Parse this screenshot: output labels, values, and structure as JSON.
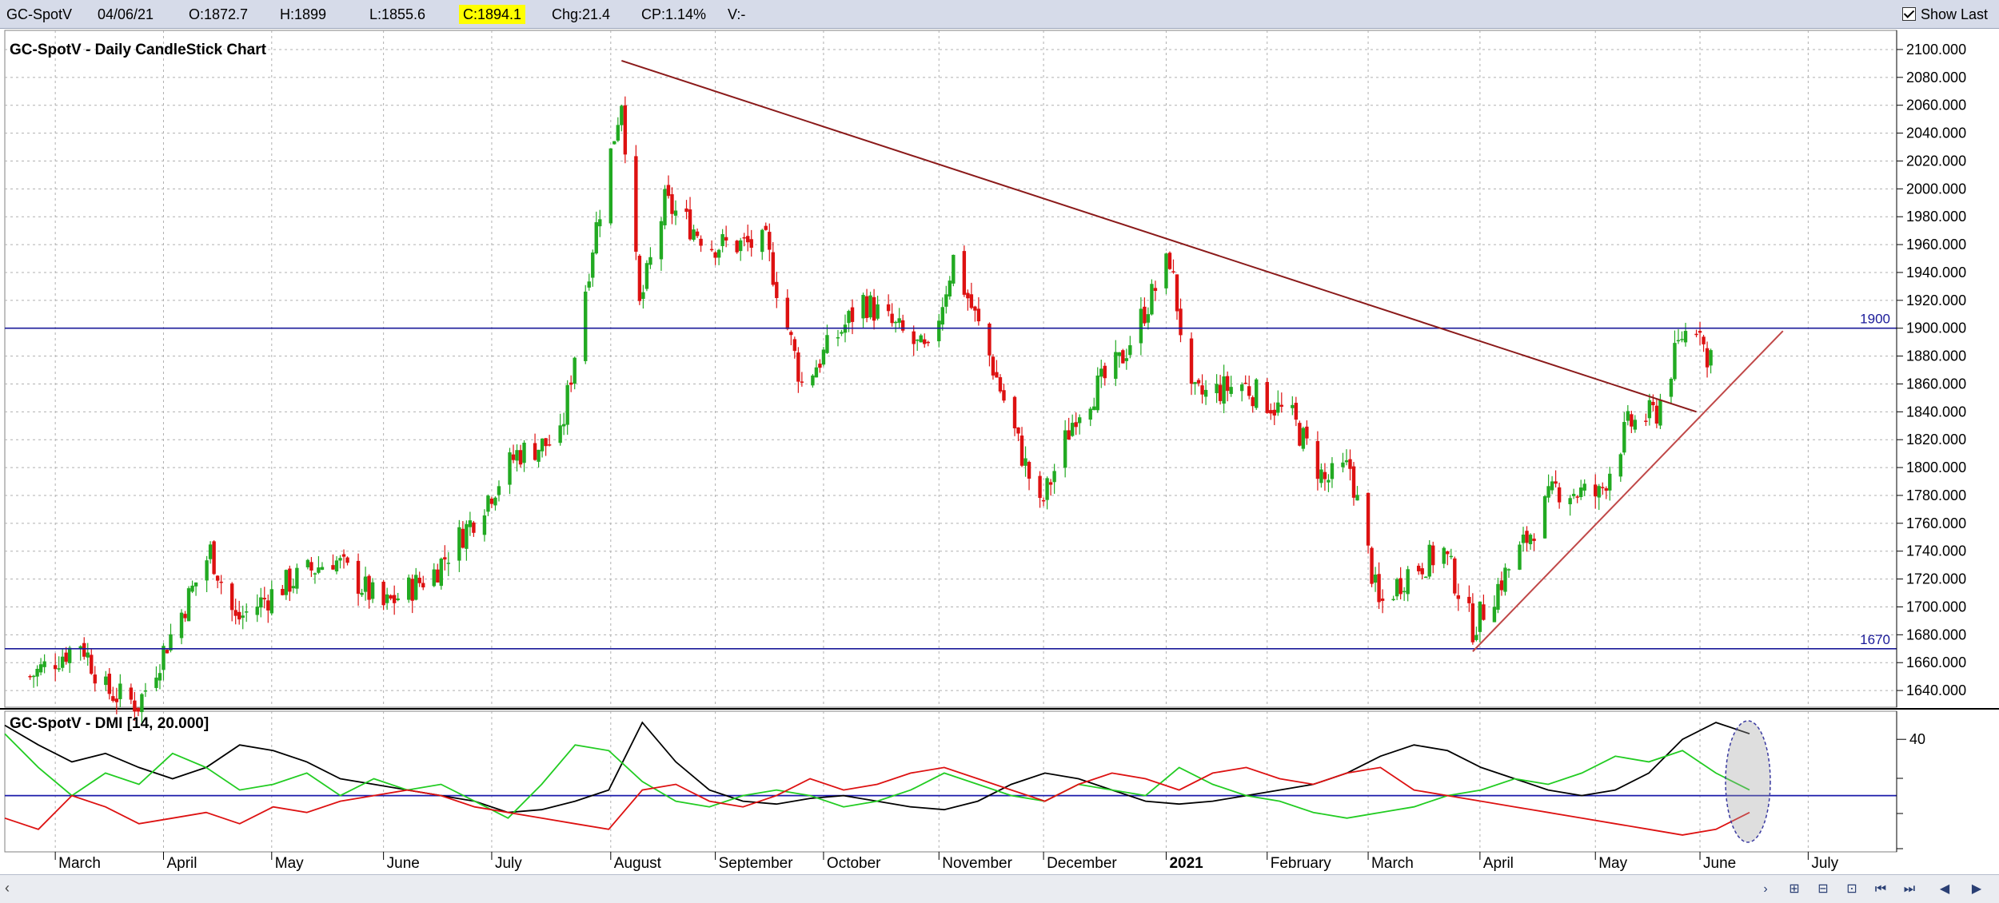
{
  "header": {
    "symbol": "GC-SpotV",
    "date": "04/06/21",
    "open": "O:1872.7",
    "high": "H:1899",
    "low": "L:1855.6",
    "close": "C:1894.1",
    "change": "Chg:21.4",
    "change_pct": "CP:1.14%",
    "volume": "V:-",
    "show_last_label": "Show Last",
    "show_last_checked": true
  },
  "chart_data": [
    {
      "type": "candlestick",
      "title": "GC-SpotV - Daily CandleStick Chart",
      "y_ticks": [
        "1640.000",
        "1660.000",
        "1680.000",
        "1700.000",
        "1720.000",
        "1740.000",
        "1760.000",
        "1780.000",
        "1800.000",
        "1820.000",
        "1840.000",
        "1860.000",
        "1880.000",
        "1900.000",
        "1920.000",
        "1940.000",
        "1960.000",
        "1980.000",
        "2000.000",
        "2020.000",
        "2040.000",
        "2060.000",
        "2080.000",
        "2100.000"
      ],
      "ylim": [
        1628,
        2108
      ],
      "x_axis_labels": [
        "March",
        "April",
        "May",
        "June",
        "July",
        "August",
        "September",
        "October",
        "November",
        "December",
        "2021",
        "February",
        "March",
        "April",
        "May",
        "June",
        "July"
      ],
      "price_path_anchors": [
        {
          "date": "2020-02-24",
          "price": 1650
        },
        {
          "date": "2020-03-09",
          "price": 1675
        },
        {
          "date": "2020-03-16",
          "price": 1640
        },
        {
          "date": "2020-03-25",
          "price": 1630
        },
        {
          "date": "2020-04-14",
          "price": 1740
        },
        {
          "date": "2020-04-21",
          "price": 1690
        },
        {
          "date": "2020-05-04",
          "price": 1715
        },
        {
          "date": "2020-05-18",
          "price": 1735
        },
        {
          "date": "2020-06-01",
          "price": 1700
        },
        {
          "date": "2020-06-15",
          "price": 1725
        },
        {
          "date": "2020-06-25",
          "price": 1760
        },
        {
          "date": "2020-07-08",
          "price": 1810
        },
        {
          "date": "2020-07-20",
          "price": 1820
        },
        {
          "date": "2020-07-29",
          "price": 1960
        },
        {
          "date": "2020-08-06",
          "price": 2065
        },
        {
          "date": "2020-08-11",
          "price": 1915
        },
        {
          "date": "2020-08-18",
          "price": 1990
        },
        {
          "date": "2020-08-31",
          "price": 1960
        },
        {
          "date": "2020-09-15",
          "price": 1960
        },
        {
          "date": "2020-09-25",
          "price": 1860
        },
        {
          "date": "2020-10-12",
          "price": 1920
        },
        {
          "date": "2020-10-30",
          "price": 1880
        },
        {
          "date": "2020-11-06",
          "price": 1950
        },
        {
          "date": "2020-11-16",
          "price": 1880
        },
        {
          "date": "2020-11-30",
          "price": 1770
        },
        {
          "date": "2020-12-10",
          "price": 1840
        },
        {
          "date": "2020-12-22",
          "price": 1875
        },
        {
          "date": "2021-01-05",
          "price": 1950
        },
        {
          "date": "2021-01-11",
          "price": 1850
        },
        {
          "date": "2021-01-25",
          "price": 1860
        },
        {
          "date": "2021-02-08",
          "price": 1835
        },
        {
          "date": "2021-02-17",
          "price": 1790
        },
        {
          "date": "2021-02-24",
          "price": 1800
        },
        {
          "date": "2021-03-04",
          "price": 1700
        },
        {
          "date": "2021-03-12",
          "price": 1725
        },
        {
          "date": "2021-03-22",
          "price": 1740
        },
        {
          "date": "2021-03-30",
          "price": 1685
        },
        {
          "date": "2021-04-12",
          "price": 1740
        },
        {
          "date": "2021-04-22",
          "price": 1785
        },
        {
          "date": "2021-05-04",
          "price": 1780
        },
        {
          "date": "2021-05-12",
          "price": 1830
        },
        {
          "date": "2021-05-20",
          "price": 1840
        },
        {
          "date": "2021-05-27",
          "price": 1895
        },
        {
          "date": "2021-06-01",
          "price": 1905
        },
        {
          "date": "2021-06-03",
          "price": 1870
        },
        {
          "date": "2021-06-04",
          "price": 1894
        }
      ],
      "horizontal_lines": [
        {
          "label": "1900",
          "value": 1900,
          "color": "#1a1a99"
        },
        {
          "label": "1670",
          "value": 1670,
          "color": "#1a1a99"
        }
      ],
      "trend_lines": [
        {
          "name": "resistance",
          "color": "#8b1a1a",
          "from": {
            "date": "2020-08-06",
            "price": 2092
          },
          "to": {
            "date": "2021-05-31",
            "price": 1840
          }
        },
        {
          "name": "support",
          "color": "#c04848",
          "from": {
            "date": "2021-03-30",
            "price": 1668
          },
          "to": {
            "date": "2021-06-24",
            "price": 1898
          }
        }
      ],
      "colors": {
        "up": "#22aa22",
        "down": "#dd1111",
        "grid": "#b0b0b0"
      }
    },
    {
      "type": "line",
      "title": "GC-SpotV - DMI [14, 20.000]",
      "y_ticks": [
        "40"
      ],
      "ylim": [
        0,
        50
      ],
      "threshold": 20,
      "series": [
        {
          "color": "#000000",
          "values": [
            45,
            38,
            32,
            35,
            30,
            26,
            30,
            38,
            36,
            32,
            26,
            24,
            22,
            20,
            18,
            14,
            15,
            18,
            22,
            46,
            32,
            22,
            18,
            17,
            19,
            20,
            18,
            16,
            15,
            18,
            24,
            28,
            26,
            22,
            18,
            17,
            18,
            20,
            22,
            24,
            28,
            34,
            38,
            36,
            30,
            26,
            22,
            20,
            22,
            28,
            40,
            46,
            42
          ]
        },
        {
          "color": "#22cc22",
          "values": [
            42,
            30,
            20,
            28,
            24,
            35,
            30,
            22,
            24,
            28,
            20,
            26,
            22,
            24,
            18,
            12,
            24,
            38,
            36,
            25,
            18,
            16,
            20,
            22,
            20,
            16,
            18,
            22,
            28,
            24,
            20,
            18,
            24,
            22,
            20,
            30,
            24,
            20,
            18,
            14,
            12,
            14,
            16,
            20,
            22,
            26,
            24,
            28,
            34,
            32,
            36,
            28,
            22
          ]
        },
        {
          "color": "#dd1111",
          "values": [
            12,
            8,
            20,
            16,
            10,
            12,
            14,
            10,
            16,
            14,
            18,
            20,
            22,
            20,
            16,
            14,
            12,
            10,
            8,
            22,
            24,
            18,
            16,
            20,
            26,
            22,
            24,
            28,
            30,
            26,
            22,
            18,
            24,
            28,
            26,
            22,
            28,
            30,
            26,
            24,
            28,
            30,
            22,
            20,
            18,
            16,
            14,
            12,
            10,
            8,
            6,
            8,
            14
          ]
        }
      ],
      "colors": {
        "black": "#000000",
        "green": "#22cc22",
        "red": "#dd1111",
        "threshold": "#1a1aaa"
      }
    }
  ]
}
